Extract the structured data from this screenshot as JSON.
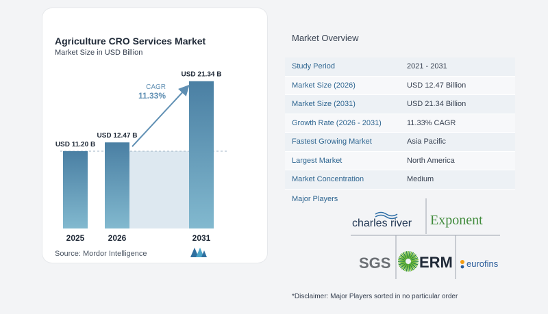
{
  "chart_data": {
    "type": "bar",
    "title": "Agriculture CRO Services Market",
    "subtitle": "Market Size in USD Billion",
    "categories": [
      "2025",
      "2026",
      "2031"
    ],
    "values": [
      11.2,
      12.47,
      21.34
    ],
    "data_labels": [
      "USD 11.20 B",
      "USD 12.47 B",
      "USD 21.34 B"
    ],
    "ylim": [
      0,
      22
    ],
    "annotation": {
      "label": "CAGR",
      "value": "11.33%"
    },
    "source": "Source:  Mordor Intelligence",
    "colors": {
      "bar": "#5f96b8",
      "bar_top": "#4a7fa3",
      "bar_bottom": "#82b9cf",
      "band": "#dde8f0",
      "arrow": "#5f8fb3",
      "cagr_text": "#5f8fb3"
    }
  },
  "overview": {
    "title": "Market Overview",
    "rows": [
      {
        "label": "Study Period",
        "value": "2021 - 2031"
      },
      {
        "label": "Market Size (2026)",
        "value": "USD 12.47 Billion"
      },
      {
        "label": "Market Size (2031)",
        "value": "USD 21.34 Billion"
      },
      {
        "label": "Growth Rate (2026 - 2031)",
        "value": "11.33% CAGR"
      },
      {
        "label": "Fastest Growing Market",
        "value": "Asia Pacific"
      },
      {
        "label": "Largest Market",
        "value": "North America"
      },
      {
        "label": "Market Concentration",
        "value": "Medium"
      }
    ]
  },
  "players": {
    "title": "Major Players",
    "logos": [
      "charles river",
      "Exponent",
      "SGS",
      "ERM",
      "eurofins"
    ]
  },
  "disclaimer": "*Disclaimer: Major Players sorted in no particular order"
}
